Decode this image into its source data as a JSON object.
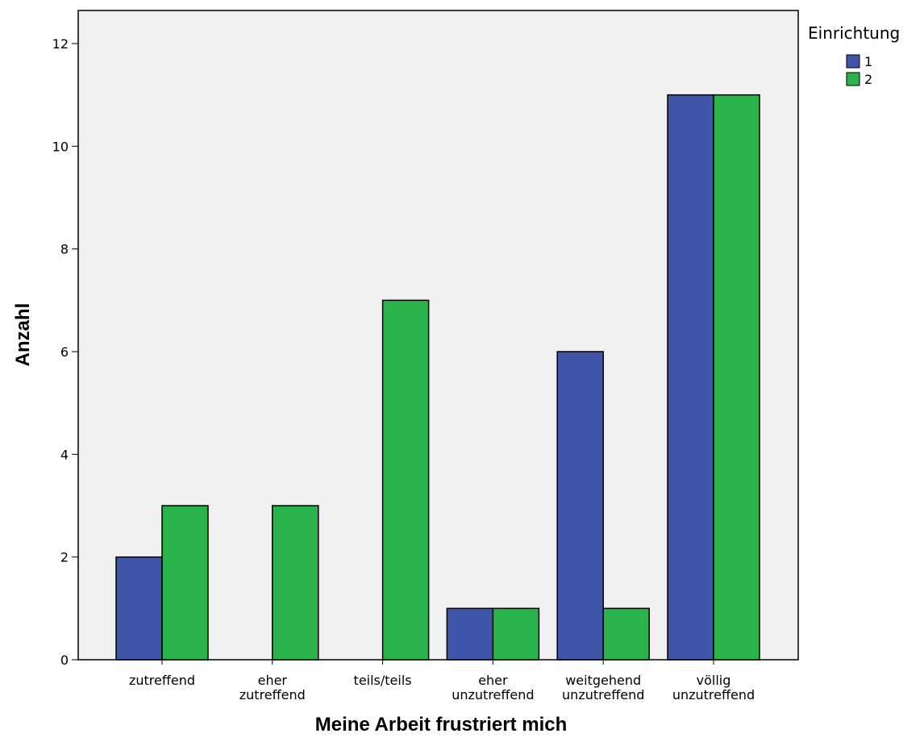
{
  "chart_data": {
    "type": "bar",
    "categories": [
      [
        "zutreffend"
      ],
      [
        "eher",
        "zutreffend"
      ],
      [
        "teils/teils"
      ],
      [
        "eher",
        "unzutreffend"
      ],
      [
        "weitgehend",
        "unzutreffend"
      ],
      [
        "völlig",
        "unzutreffend"
      ]
    ],
    "series": [
      {
        "name": "1",
        "color": "#3f55a8",
        "values": [
          2,
          0,
          0,
          1,
          6,
          11
        ]
      },
      {
        "name": "2",
        "color": "#2ab34a",
        "values": [
          3,
          3,
          7,
          1,
          1,
          11
        ]
      }
    ],
    "legend_title": "Einrichtung",
    "legend_position": "top-right",
    "xlabel": "Meine Arbeit frustriert mich",
    "ylabel": "Anzahl",
    "ylim": [
      0,
      12
    ],
    "yticks": [
      0,
      2,
      4,
      6,
      8,
      10,
      12
    ],
    "plot_background": "#f0f0f0",
    "grid": false
  }
}
